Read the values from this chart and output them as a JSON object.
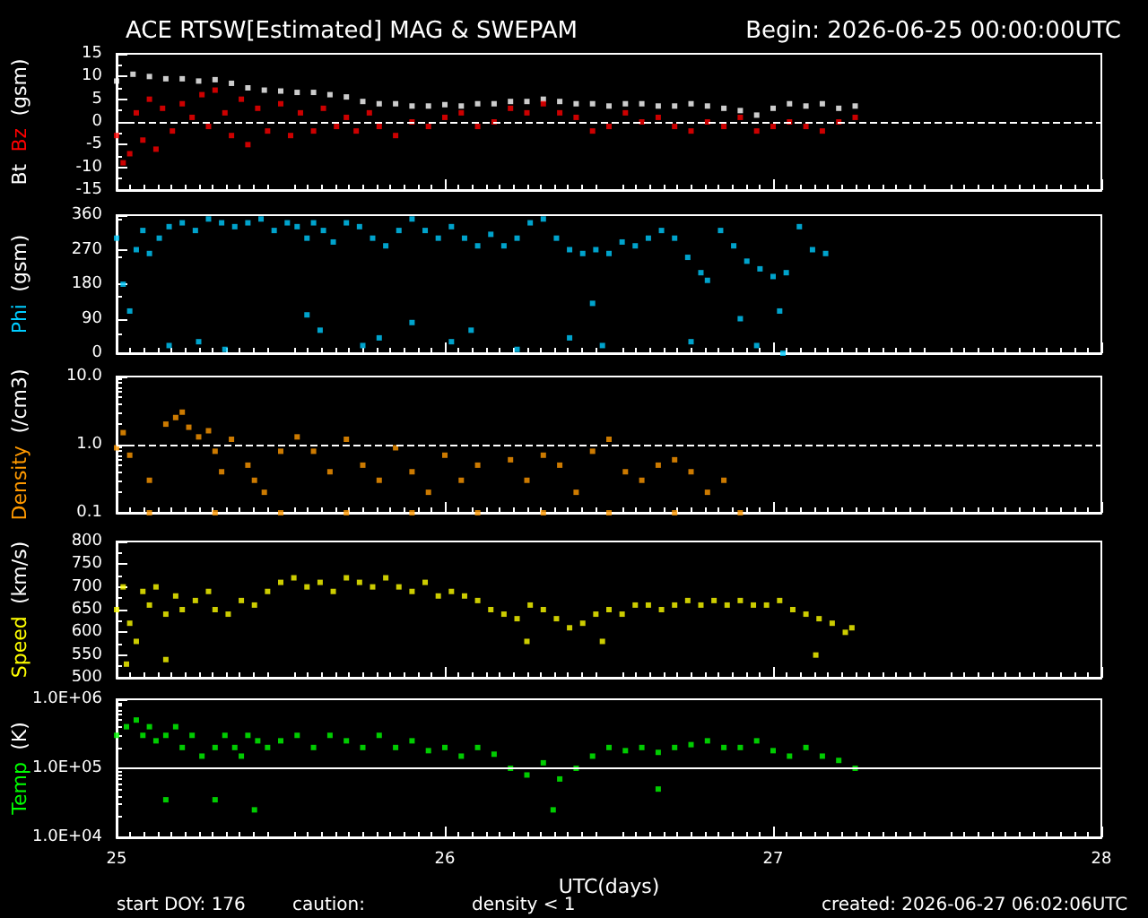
{
  "chart_data": [
    {
      "type": "scatter",
      "title": "ACE RTSW[Estimated] MAG & SWEPAM",
      "subtitle": "Begin: 2026-06-25 00:00:00UTC",
      "ylabel": "(gsm)",
      "marker": "square",
      "tick_labels": "y",
      "xlim": [
        25,
        28
      ],
      "xticks": [
        25,
        26,
        27,
        28
      ],
      "ylim": [
        -15,
        15
      ],
      "yticks": [
        -15,
        -10,
        -5,
        0,
        5,
        10,
        15
      ],
      "ref_lines": [
        {
          "axis": "y",
          "value": 0,
          "color": "#ffffff",
          "line_style": "dashed"
        }
      ],
      "series": [
        {
          "name": "Bt",
          "color": "#ffffff",
          "x": [
            25.0,
            25.05,
            25.1,
            25.15,
            25.2,
            25.25,
            25.3,
            25.35,
            25.4,
            25.45,
            25.5,
            25.55,
            25.6,
            25.65,
            25.7,
            25.75,
            25.8,
            25.85,
            25.9,
            25.95,
            26.0,
            26.05,
            26.1,
            26.15,
            26.2,
            26.25,
            26.3,
            26.35,
            26.4,
            26.45,
            26.5,
            26.55,
            26.6,
            26.65,
            26.7,
            26.75,
            26.8,
            26.85,
            26.9,
            26.95,
            27.0,
            27.05,
            27.1,
            27.15,
            27.2,
            27.25
          ],
          "values": [
            9,
            10.5,
            10,
            9.5,
            9.5,
            9,
            9.3,
            8.5,
            7.5,
            7,
            6.8,
            6.5,
            6.5,
            6,
            5.5,
            4.5,
            4,
            4,
            3.5,
            3.5,
            3.8,
            3.5,
            4,
            4,
            4.5,
            4.5,
            5,
            4.5,
            4,
            4,
            3.5,
            4,
            4,
            3.5,
            3.5,
            4,
            3.5,
            3,
            2.5,
            1.5,
            3,
            4,
            3.5,
            4,
            3,
            3.5
          ]
        },
        {
          "name": "Bz",
          "color": "#ff0000",
          "x": [
            25.0,
            25.02,
            25.04,
            25.06,
            25.08,
            25.1,
            25.12,
            25.14,
            25.17,
            25.2,
            25.23,
            25.26,
            25.28,
            25.3,
            25.33,
            25.35,
            25.38,
            25.4,
            25.43,
            25.46,
            25.5,
            25.53,
            25.56,
            25.6,
            25.63,
            25.67,
            25.7,
            25.73,
            25.77,
            25.8,
            25.85,
            25.9,
            25.95,
            26.0,
            26.05,
            26.1,
            26.15,
            26.2,
            26.25,
            26.3,
            26.35,
            26.4,
            26.45,
            26.5,
            26.55,
            26.6,
            26.65,
            26.7,
            26.75,
            26.8,
            26.85,
            26.9,
            26.95,
            27.0,
            27.05,
            27.1,
            27.15,
            27.2,
            27.25
          ],
          "values": [
            -3,
            -9,
            -7,
            2,
            -4,
            5,
            -6,
            3,
            -2,
            4,
            1,
            6,
            -1,
            7,
            2,
            -3,
            5,
            -5,
            3,
            -2,
            4,
            -3,
            2,
            -2,
            3,
            -1,
            1,
            -2,
            2,
            -1,
            -3,
            0,
            -1,
            1,
            2,
            -1,
            0,
            3,
            2,
            4,
            2,
            1,
            -2,
            -1,
            2,
            0,
            1,
            -1,
            -2,
            0,
            -1,
            1,
            -2,
            -1,
            0,
            -1,
            -2,
            0,
            1
          ]
        }
      ]
    },
    {
      "type": "scatter",
      "ylabel": "(gsm)",
      "marker": "square",
      "tick_labels": "y",
      "xlim": [
        25,
        28
      ],
      "xticks": [
        25,
        26,
        27,
        28
      ],
      "ylim": [
        0,
        360
      ],
      "yticks": [
        0,
        90,
        180,
        270,
        360
      ],
      "series": [
        {
          "name": "Phi",
          "color": "#00ccff",
          "x": [
            25.0,
            25.02,
            25.04,
            25.06,
            25.08,
            25.1,
            25.13,
            25.16,
            25.2,
            25.24,
            25.28,
            25.32,
            25.36,
            25.4,
            25.44,
            25.48,
            25.52,
            25.55,
            25.58,
            25.6,
            25.63,
            25.66,
            25.7,
            25.74,
            25.78,
            25.82,
            25.86,
            25.9,
            25.94,
            25.98,
            26.02,
            26.06,
            26.1,
            26.14,
            26.18,
            26.22,
            26.26,
            26.3,
            26.34,
            26.38,
            26.42,
            26.46,
            26.5,
            26.54,
            26.58,
            26.62,
            26.66,
            26.7,
            26.74,
            26.78,
            26.8,
            26.84,
            26.88,
            26.92,
            26.96,
            27.0,
            27.04,
            27.08,
            27.12,
            27.16,
            25.16,
            25.25,
            25.33,
            25.58,
            25.62,
            25.75,
            25.8,
            25.9,
            26.02,
            26.08,
            26.22,
            26.38,
            26.45,
            26.48,
            26.75,
            26.9,
            26.95,
            27.02,
            27.03
          ],
          "values": [
            300,
            180,
            110,
            270,
            320,
            260,
            300,
            330,
            340,
            320,
            350,
            340,
            330,
            340,
            350,
            320,
            340,
            330,
            300,
            340,
            320,
            290,
            340,
            330,
            300,
            280,
            320,
            350,
            320,
            300,
            330,
            300,
            280,
            310,
            280,
            300,
            340,
            350,
            300,
            270,
            260,
            270,
            260,
            290,
            280,
            300,
            320,
            300,
            250,
            210,
            190,
            320,
            280,
            240,
            220,
            200,
            210,
            330,
            270,
            260,
            20,
            30,
            10,
            100,
            60,
            20,
            40,
            80,
            30,
            60,
            10,
            40,
            130,
            20,
            30,
            90,
            20,
            110,
            0
          ]
        }
      ]
    },
    {
      "type": "scatter",
      "ylabel": "(/cm3)",
      "marker": "square",
      "log": "y",
      "tick_labels": "y",
      "xlim": [
        25,
        28
      ],
      "xticks": [
        25,
        26,
        27,
        28
      ],
      "ylim": [
        0.1,
        10
      ],
      "yticks": [
        {
          "value": 0.1,
          "label": "0.1"
        },
        {
          "value": 1,
          "label": "1.0"
        },
        {
          "value": 10,
          "label": "10.0"
        }
      ],
      "ref_lines": [
        {
          "axis": "y",
          "value": 1,
          "color": "#ffffff",
          "line_style": "dashed"
        }
      ],
      "series": [
        {
          "name": "Density",
          "color": "#ff9900",
          "x": [
            25.0,
            25.02,
            25.04,
            25.1,
            25.15,
            25.18,
            25.2,
            25.22,
            25.25,
            25.28,
            25.3,
            25.32,
            25.35,
            25.4,
            25.42,
            25.45,
            25.5,
            25.55,
            25.6,
            25.65,
            25.7,
            25.75,
            25.8,
            25.85,
            25.9,
            25.95,
            26.0,
            26.05,
            26.1,
            26.2,
            26.25,
            26.3,
            26.35,
            26.4,
            26.45,
            26.5,
            26.55,
            26.6,
            26.65,
            26.7,
            26.75,
            26.8,
            26.85,
            25.1,
            25.3,
            25.5,
            25.7,
            25.9,
            26.1,
            26.3,
            26.5,
            26.7,
            26.9
          ],
          "values": [
            0.9,
            1.5,
            0.7,
            0.3,
            2,
            2.5,
            3,
            1.8,
            1.3,
            1.6,
            0.8,
            0.4,
            1.2,
            0.5,
            0.3,
            0.2,
            0.8,
            1.3,
            0.8,
            0.4,
            1.2,
            0.5,
            0.3,
            0.9,
            0.4,
            0.2,
            0.7,
            0.3,
            0.5,
            0.6,
            0.3,
            0.7,
            0.5,
            0.2,
            0.8,
            1.2,
            0.4,
            0.3,
            0.5,
            0.6,
            0.4,
            0.2,
            0.3,
            0.1,
            0.1,
            0.1,
            0.1,
            0.1,
            0.1,
            0.1,
            0.1,
            0.1,
            0.1
          ]
        }
      ]
    },
    {
      "type": "scatter",
      "ylabel": "(km/s)",
      "marker": "square",
      "tick_labels": "y",
      "xlim": [
        25,
        28
      ],
      "xticks": [
        25,
        26,
        27,
        28
      ],
      "ylim": [
        500,
        800
      ],
      "yticks": [
        500,
        550,
        600,
        650,
        700,
        750,
        800
      ],
      "series": [
        {
          "name": "Speed",
          "color": "#ffff00",
          "x": [
            25.0,
            25.02,
            25.04,
            25.06,
            25.08,
            25.1,
            25.12,
            25.15,
            25.18,
            25.2,
            25.24,
            25.28,
            25.3,
            25.34,
            25.38,
            25.42,
            25.46,
            25.5,
            25.54,
            25.58,
            25.62,
            25.66,
            25.7,
            25.74,
            25.78,
            25.82,
            25.86,
            25.9,
            25.94,
            25.98,
            26.02,
            26.06,
            26.1,
            26.14,
            26.18,
            26.22,
            26.26,
            26.3,
            26.34,
            26.38,
            26.42,
            26.46,
            26.5,
            26.54,
            26.58,
            26.62,
            26.66,
            26.7,
            26.74,
            26.78,
            26.82,
            26.86,
            26.9,
            26.94,
            26.98,
            27.02,
            27.06,
            27.1,
            27.14,
            27.18,
            27.22,
            27.24,
            25.15,
            25.03,
            26.48,
            26.25,
            27.13
          ],
          "values": [
            650,
            700,
            620,
            580,
            690,
            660,
            700,
            640,
            680,
            650,
            670,
            690,
            650,
            640,
            670,
            660,
            690,
            710,
            720,
            700,
            710,
            690,
            720,
            710,
            700,
            720,
            700,
            690,
            710,
            680,
            690,
            680,
            670,
            650,
            640,
            630,
            660,
            650,
            630,
            610,
            620,
            640,
            650,
            640,
            660,
            660,
            650,
            660,
            670,
            660,
            670,
            660,
            670,
            660,
            660,
            670,
            650,
            640,
            630,
            620,
            600,
            610,
            540,
            530,
            580,
            580,
            550
          ]
        }
      ]
    },
    {
      "type": "scatter",
      "ylabel": "(K)",
      "xlabel": "UTC(days)",
      "marker": "square",
      "log": "y",
      "xlim": [
        25,
        28
      ],
      "xticks": [
        25,
        26,
        27,
        28
      ],
      "ylim": [
        10000,
        1000000
      ],
      "yticks": [
        {
          "value": 10000,
          "label": "1.0E+04"
        },
        {
          "value": 100000,
          "label": "1.0E+05"
        },
        {
          "value": 1000000,
          "label": "1.0E+06"
        }
      ],
      "ref_lines": [
        {
          "axis": "y",
          "value": 100000,
          "color": "#ffffff",
          "line_style": "solid"
        }
      ],
      "annotations": [
        "start DOY: 176",
        "caution:",
        "density < 1",
        "created: 2026-06-27 06:02:06UTC"
      ],
      "series": [
        {
          "name": "Temp",
          "color": "#00ff00",
          "x": [
            25.0,
            25.03,
            25.06,
            25.08,
            25.1,
            25.12,
            25.15,
            25.18,
            25.2,
            25.23,
            25.26,
            25.3,
            25.33,
            25.36,
            25.38,
            25.4,
            25.43,
            25.46,
            25.5,
            25.55,
            25.6,
            25.65,
            25.7,
            25.75,
            25.8,
            25.85,
            25.9,
            25.95,
            26.0,
            26.05,
            26.1,
            26.15,
            26.2,
            26.25,
            26.3,
            26.35,
            26.4,
            26.45,
            26.5,
            26.55,
            26.6,
            26.65,
            26.7,
            26.75,
            26.8,
            26.85,
            26.9,
            26.95,
            27.0,
            27.05,
            27.1,
            27.15,
            27.2,
            27.25,
            25.15,
            25.3,
            25.42,
            26.33,
            26.65
          ],
          "values": [
            300000,
            400000,
            500000,
            300000,
            400000,
            250000,
            300000,
            400000,
            200000,
            300000,
            150000,
            200000,
            300000,
            200000,
            150000,
            300000,
            250000,
            200000,
            250000,
            300000,
            200000,
            300000,
            250000,
            200000,
            300000,
            200000,
            250000,
            180000,
            200000,
            150000,
            200000,
            160000,
            100000,
            80000,
            120000,
            70000,
            100000,
            150000,
            200000,
            180000,
            200000,
            170000,
            200000,
            220000,
            250000,
            200000,
            200000,
            250000,
            180000,
            150000,
            200000,
            150000,
            130000,
            100000,
            35000,
            35000,
            25000,
            25000,
            50000
          ]
        }
      ]
    }
  ]
}
